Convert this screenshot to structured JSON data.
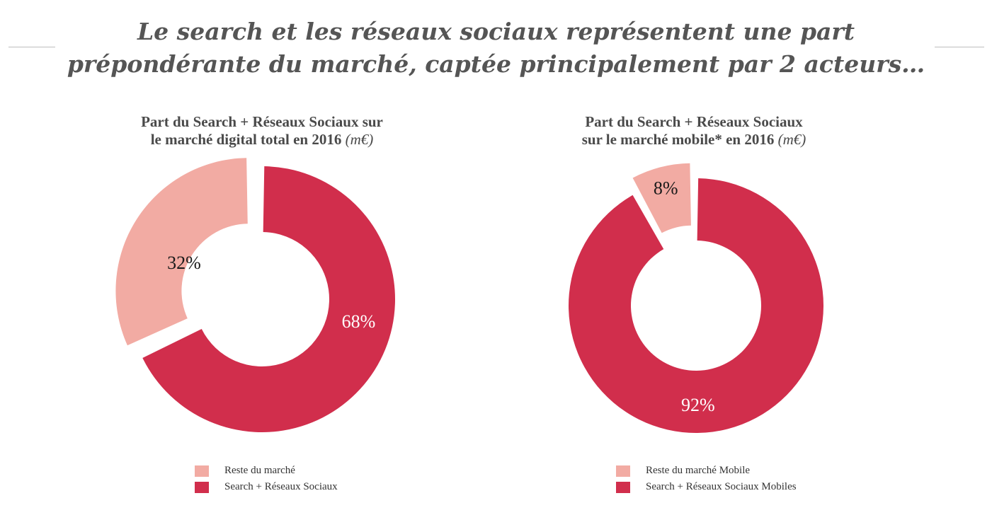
{
  "page": {
    "title_line1": "Le search et les réseaux sociaux représentent une part",
    "title_line2": "prépondérante du marché, captée principalement par 2 acteurs…"
  },
  "colors": {
    "market_rest": "#f2aba3",
    "search_social": "#d12e4c"
  },
  "chart_data": [
    {
      "type": "pie",
      "variant": "donut",
      "title_line1": "Part du Search + Réseaux Sociaux sur",
      "title_line2": "le marché digital total en 2016",
      "unit": "(m€)",
      "slices": [
        {
          "label": "Reste du marché",
          "value": 32,
          "display": "32%",
          "color": "#f2aba3",
          "exploded": true
        },
        {
          "label": "Search + Réseaux Sociaux",
          "value": 68,
          "display": "68%",
          "color": "#d12e4c",
          "exploded": false
        }
      ],
      "legend": [
        "Reste du marché",
        "Search + Réseaux Sociaux"
      ],
      "legend_position": "bottom"
    },
    {
      "type": "pie",
      "variant": "donut",
      "title_line1": "Part du Search + Réseaux Sociaux",
      "title_line2": "sur le marché mobile* en 2016",
      "unit": "(m€)",
      "slices": [
        {
          "label": "Reste du marché Mobile",
          "value": 8,
          "display": "8%",
          "color": "#f2aba3",
          "exploded": true
        },
        {
          "label": "Search + Réseaux Sociaux Mobiles",
          "value": 92,
          "display": "92%",
          "color": "#d12e4c",
          "exploded": false
        }
      ],
      "legend": [
        "Reste du marché Mobile",
        "Search + Réseaux Sociaux Mobiles"
      ],
      "legend_position": "bottom"
    }
  ]
}
